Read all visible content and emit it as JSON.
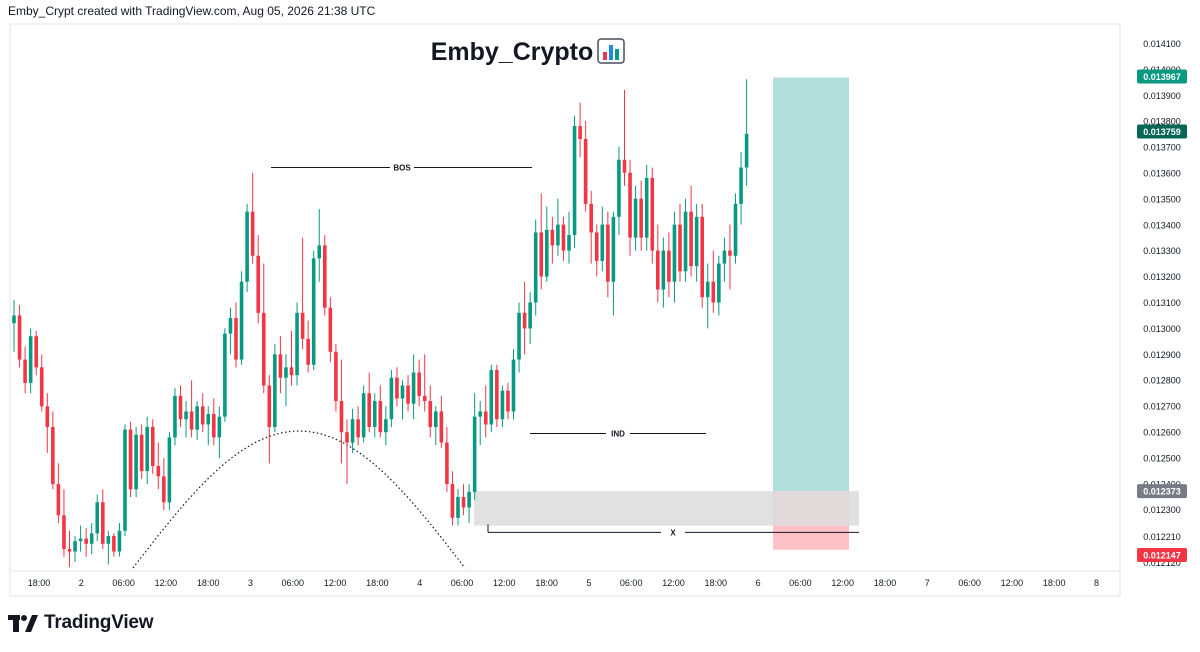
{
  "header": {
    "caption": "Emby_Crypt created with TradingView.com, Aug 05, 2026 21:38 UTC"
  },
  "footer": {
    "brand": "TradingView",
    "logo_icon": "tradingview-logo-icon"
  },
  "colors": {
    "up": "#089981",
    "down": "#f23645",
    "target_zone": "#b2dfdb",
    "stop_zone": "#ffc1c8",
    "gray_zone": "#dcdcdc",
    "label_gray": "#787b86",
    "label_green": "#089981",
    "label_dark_green": "#056656",
    "label_red": "#f23645"
  },
  "chart_data": {
    "type": "candlestick",
    "title": "Emby_Crypto",
    "title_icon": "bar-chart-emoji-icon",
    "grid": false,
    "ylim": [
      0.01212,
      0.01411
    ],
    "y_ticks": [
      "0.014100",
      "0.014000",
      "0.013900",
      "0.013800",
      "0.013700",
      "0.013600",
      "0.013500",
      "0.013400",
      "0.013300",
      "0.013200",
      "0.013100",
      "0.013000",
      "0.012900",
      "0.012800",
      "0.012700",
      "0.012600",
      "0.012500",
      "0.012400",
      "0.012300",
      "0.012210",
      "0.012120"
    ],
    "x_ticks": [
      "18:00",
      "2",
      "06:00",
      "12:00",
      "18:00",
      "3",
      "06:00",
      "12:00",
      "18:00",
      "4",
      "06:00",
      "12:00",
      "18:00",
      "5",
      "06:00",
      "12:00",
      "18:00",
      "6",
      "06:00",
      "12:00",
      "18:00",
      "7",
      "06:00",
      "12:00",
      "18:00",
      "8"
    ],
    "price_labels": [
      {
        "value": "0.013967",
        "style": "green"
      },
      {
        "value": "0.013759",
        "style": "dark_green"
      },
      {
        "value": "0.012373",
        "style": "gray"
      },
      {
        "value": "0.012147",
        "style": "red"
      }
    ],
    "annotations": [
      {
        "text": "BOS",
        "price": 0.01362
      },
      {
        "text": "IND",
        "price": 0.012595
      },
      {
        "text": "X",
        "price": 0.01221
      }
    ],
    "long_position": {
      "entry": 0.012373,
      "target": 0.013967,
      "stop": 0.012147
    },
    "support_zone": {
      "top": 0.012373,
      "bottom": 0.01224
    },
    "arc_label": "",
    "candles": [
      [
        0.01302,
        0.01311,
        0.01291,
        0.01305
      ],
      [
        0.01305,
        0.01309,
        0.01285,
        0.01288
      ],
      [
        0.01288,
        0.01293,
        0.01275,
        0.01279
      ],
      [
        0.01279,
        0.013,
        0.01275,
        0.01297
      ],
      [
        0.01297,
        0.01299,
        0.01282,
        0.01285
      ],
      [
        0.01285,
        0.0129,
        0.01268,
        0.0127
      ],
      [
        0.0127,
        0.01275,
        0.01252,
        0.01262
      ],
      [
        0.01262,
        0.01268,
        0.01238,
        0.0124
      ],
      [
        0.0124,
        0.01248,
        0.01225,
        0.01228
      ],
      [
        0.01228,
        0.01238,
        0.01212,
        0.01215
      ],
      [
        0.01215,
        0.01222,
        0.01208,
        0.01214
      ],
      [
        0.01214,
        0.0122,
        0.0121,
        0.01218
      ],
      [
        0.01218,
        0.01224,
        0.01214,
        0.01219
      ],
      [
        0.01219,
        0.01223,
        0.01212,
        0.01217
      ],
      [
        0.01217,
        0.01225,
        0.01213,
        0.01221
      ],
      [
        0.01221,
        0.01236,
        0.01218,
        0.01233
      ],
      [
        0.01233,
        0.01238,
        0.01215,
        0.01217
      ],
      [
        0.01217,
        0.01222,
        0.01209,
        0.0122
      ],
      [
        0.0122,
        0.01221,
        0.01212,
        0.01214
      ],
      [
        0.01214,
        0.01225,
        0.01212,
        0.01222
      ],
      [
        0.01222,
        0.01263,
        0.0122,
        0.01261
      ],
      [
        0.01261,
        0.01264,
        0.01235,
        0.01238
      ],
      [
        0.01238,
        0.01262,
        0.01235,
        0.01259
      ],
      [
        0.01259,
        0.01263,
        0.01242,
        0.01245
      ],
      [
        0.01245,
        0.01266,
        0.0124,
        0.01262
      ],
      [
        0.01262,
        0.01265,
        0.01244,
        0.01247
      ],
      [
        0.01247,
        0.01256,
        0.01238,
        0.01243
      ],
      [
        0.01243,
        0.0125,
        0.0123,
        0.01233
      ],
      [
        0.01233,
        0.0126,
        0.0123,
        0.01258
      ],
      [
        0.01258,
        0.01277,
        0.01255,
        0.01274
      ],
      [
        0.01274,
        0.01278,
        0.01262,
        0.01265
      ],
      [
        0.01265,
        0.01272,
        0.01258,
        0.01268
      ],
      [
        0.01268,
        0.0128,
        0.01258,
        0.01261
      ],
      [
        0.01261,
        0.01272,
        0.01257,
        0.0127
      ],
      [
        0.0127,
        0.01275,
        0.0126,
        0.01263
      ],
      [
        0.01263,
        0.0127,
        0.01255,
        0.01267
      ],
      [
        0.01267,
        0.01273,
        0.01255,
        0.01258
      ],
      [
        0.01258,
        0.0127,
        0.0125,
        0.01266
      ],
      [
        0.01266,
        0.013,
        0.01264,
        0.01298
      ],
      [
        0.01298,
        0.01308,
        0.0129,
        0.01304
      ],
      [
        0.01304,
        0.0131,
        0.01285,
        0.01288
      ],
      [
        0.01288,
        0.01322,
        0.01286,
        0.01318
      ],
      [
        0.01318,
        0.01348,
        0.01314,
        0.01345
      ],
      [
        0.01345,
        0.0136,
        0.01325,
        0.01328
      ],
      [
        0.01328,
        0.01336,
        0.01302,
        0.01306
      ],
      [
        0.01306,
        0.01325,
        0.01275,
        0.01278
      ],
      [
        0.01278,
        0.01282,
        0.01248,
        0.01262
      ],
      [
        0.01262,
        0.01294,
        0.0126,
        0.0129
      ],
      [
        0.0129,
        0.01297,
        0.01275,
        0.01281
      ],
      [
        0.01281,
        0.0129,
        0.0127,
        0.01285
      ],
      [
        0.01285,
        0.01299,
        0.01278,
        0.01282
      ],
      [
        0.01282,
        0.0131,
        0.01278,
        0.01306
      ],
      [
        0.01306,
        0.01335,
        0.01292,
        0.01296
      ],
      [
        0.01296,
        0.01303,
        0.01283,
        0.01286
      ],
      [
        0.01286,
        0.0133,
        0.01284,
        0.01327
      ],
      [
        0.01327,
        0.01346,
        0.01318,
        0.01332
      ],
      [
        0.01332,
        0.01336,
        0.01305,
        0.01308
      ],
      [
        0.01308,
        0.01312,
        0.01287,
        0.01291
      ],
      [
        0.01291,
        0.01294,
        0.01268,
        0.01272
      ],
      [
        0.01272,
        0.01288,
        0.01248,
        0.0126
      ],
      [
        0.0126,
        0.01265,
        0.0124,
        0.01256
      ],
      [
        0.01256,
        0.01269,
        0.01252,
        0.01265
      ],
      [
        0.01265,
        0.0127,
        0.01255,
        0.01258
      ],
      [
        0.01258,
        0.01278,
        0.01256,
        0.01275
      ],
      [
        0.01275,
        0.01283,
        0.0126,
        0.01262
      ],
      [
        0.01262,
        0.01275,
        0.01258,
        0.01272
      ],
      [
        0.01272,
        0.01278,
        0.01258,
        0.0126
      ],
      [
        0.0126,
        0.0127,
        0.01255,
        0.01265
      ],
      [
        0.01265,
        0.01284,
        0.01262,
        0.01281
      ],
      [
        0.01281,
        0.01285,
        0.0127,
        0.01273
      ],
      [
        0.01273,
        0.0128,
        0.01265,
        0.01278
      ],
      [
        0.01278,
        0.01282,
        0.01268,
        0.01271
      ],
      [
        0.01271,
        0.0129,
        0.01265,
        0.01283
      ],
      [
        0.01283,
        0.01288,
        0.0127,
        0.01274
      ],
      [
        0.01274,
        0.0129,
        0.01268,
        0.01272
      ],
      [
        0.01272,
        0.01278,
        0.01258,
        0.01262
      ],
      [
        0.01262,
        0.0127,
        0.01255,
        0.01268
      ],
      [
        0.01268,
        0.01274,
        0.01254,
        0.01256
      ],
      [
        0.01256,
        0.01262,
        0.01237,
        0.0124
      ],
      [
        0.0124,
        0.01245,
        0.01224,
        0.01227
      ],
      [
        0.01227,
        0.01238,
        0.01224,
        0.01235
      ],
      [
        0.01235,
        0.0124,
        0.01228,
        0.01231
      ],
      [
        0.01231,
        0.0124,
        0.01225,
        0.01237
      ],
      [
        0.01237,
        0.01275,
        0.01234,
        0.01266
      ],
      [
        0.01266,
        0.01272,
        0.01255,
        0.01268
      ],
      [
        0.01268,
        0.01278,
        0.01258,
        0.01263
      ],
      [
        0.01263,
        0.01286,
        0.0126,
        0.01284
      ],
      [
        0.01284,
        0.01286,
        0.01262,
        0.01265
      ],
      [
        0.01265,
        0.01278,
        0.01262,
        0.01276
      ],
      [
        0.01276,
        0.01279,
        0.01265,
        0.01268
      ],
      [
        0.01268,
        0.01292,
        0.01265,
        0.01288
      ],
      [
        0.01288,
        0.0131,
        0.01283,
        0.01306
      ],
      [
        0.01306,
        0.01318,
        0.0129,
        0.013
      ],
      [
        0.013,
        0.01314,
        0.01294,
        0.0131
      ],
      [
        0.0131,
        0.01342,
        0.01305,
        0.01337
      ],
      [
        0.01337,
        0.01352,
        0.01315,
        0.0132
      ],
      [
        0.0132,
        0.01347,
        0.01318,
        0.01338
      ],
      [
        0.01338,
        0.01343,
        0.01325,
        0.01332
      ],
      [
        0.01332,
        0.0135,
        0.01328,
        0.0134
      ],
      [
        0.0134,
        0.01343,
        0.01326,
        0.0133
      ],
      [
        0.0133,
        0.01345,
        0.01325,
        0.01336
      ],
      [
        0.01336,
        0.01382,
        0.01331,
        0.01378
      ],
      [
        0.01378,
        0.01387,
        0.01366,
        0.01373
      ],
      [
        0.01373,
        0.0138,
        0.01345,
        0.01348
      ],
      [
        0.01348,
        0.01353,
        0.01325,
        0.01337
      ],
      [
        0.01337,
        0.0134,
        0.0132,
        0.01326
      ],
      [
        0.01326,
        0.01347,
        0.01322,
        0.0134
      ],
      [
        0.0134,
        0.01345,
        0.01312,
        0.01318
      ],
      [
        0.01318,
        0.01345,
        0.01305,
        0.01343
      ],
      [
        0.01343,
        0.0137,
        0.01336,
        0.01365
      ],
      [
        0.01365,
        0.01392,
        0.01355,
        0.0136
      ],
      [
        0.0136,
        0.01365,
        0.01328,
        0.01335
      ],
      [
        0.01335,
        0.01355,
        0.0133,
        0.0135
      ],
      [
        0.0135,
        0.01357,
        0.0133,
        0.01335
      ],
      [
        0.01335,
        0.01363,
        0.0133,
        0.01358
      ],
      [
        0.01358,
        0.01362,
        0.01325,
        0.0133
      ],
      [
        0.0133,
        0.0134,
        0.0131,
        0.01315
      ],
      [
        0.01315,
        0.01335,
        0.01308,
        0.0133
      ],
      [
        0.0133,
        0.01337,
        0.01312,
        0.01318
      ],
      [
        0.01318,
        0.01345,
        0.0131,
        0.0134
      ],
      [
        0.0134,
        0.01348,
        0.01318,
        0.01322
      ],
      [
        0.01322,
        0.0135,
        0.01318,
        0.01345
      ],
      [
        0.01345,
        0.01355,
        0.0132,
        0.01324
      ],
      [
        0.01324,
        0.01348,
        0.01318,
        0.01343
      ],
      [
        0.01343,
        0.01348,
        0.01308,
        0.01312
      ],
      [
        0.01312,
        0.01325,
        0.013,
        0.01318
      ],
      [
        0.01318,
        0.0133,
        0.01306,
        0.0131
      ],
      [
        0.0131,
        0.01328,
        0.01305,
        0.01325
      ],
      [
        0.01325,
        0.01335,
        0.01318,
        0.0133
      ],
      [
        0.0133,
        0.0134,
        0.01315,
        0.01328
      ],
      [
        0.01328,
        0.01352,
        0.01325,
        0.01348
      ],
      [
        0.01348,
        0.01368,
        0.0134,
        0.01362
      ],
      [
        0.01362,
        0.01396,
        0.01355,
        0.01375
      ]
    ]
  }
}
